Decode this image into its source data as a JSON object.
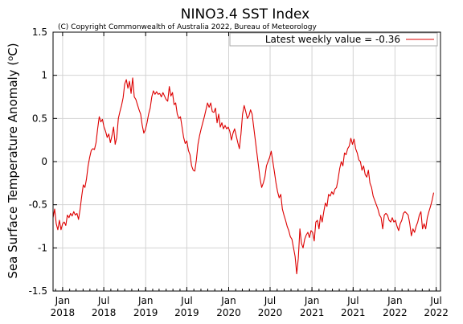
{
  "chart_data": {
    "type": "line",
    "title": "NINO3.4 SST Index",
    "subtitle": "(C) Copyright Commonwealth of Australia 2022, Bureau of Meteorology",
    "ylabel": "Sea Surface Temperature Anomaly (°C)",
    "xlabel": "",
    "ylim": [
      -1.5,
      1.5
    ],
    "xlim": [
      "2017-11-20",
      "2022-07-20"
    ],
    "yticks": [
      -1.5,
      -1,
      -0.5,
      0,
      0.5,
      1,
      1.5
    ],
    "ytick_labels": [
      "-1.5",
      "-1",
      "-0.5",
      "0",
      "0.5",
      "1",
      "1.5"
    ],
    "xticks": [
      {
        "date": "2018-01-01",
        "month": "Jan",
        "year": "2018"
      },
      {
        "date": "2018-07-01",
        "month": "Jul",
        "year": "2018"
      },
      {
        "date": "2019-01-01",
        "month": "Jan",
        "year": "2019"
      },
      {
        "date": "2019-07-01",
        "month": "Jul",
        "year": "2019"
      },
      {
        "date": "2020-01-01",
        "month": "Jan",
        "year": "2020"
      },
      {
        "date": "2020-07-01",
        "month": "Jul",
        "year": "2020"
      },
      {
        "date": "2021-01-01",
        "month": "Jan",
        "year": "2021"
      },
      {
        "date": "2021-07-01",
        "month": "Jul",
        "year": "2021"
      },
      {
        "date": "2022-01-01",
        "month": "Jan",
        "year": "2022"
      },
      {
        "date": "2022-07-01",
        "month": "Jul",
        "year": "2022"
      }
    ],
    "grid": true,
    "legend_position": "top-right",
    "series": [
      {
        "name": "Latest weekly value = -0.36",
        "color": "#dd0000",
        "points": [
          [
            "2017-11-20",
            -0.65
          ],
          [
            "2017-11-27",
            -0.55
          ],
          [
            "2017-12-04",
            -0.72
          ],
          [
            "2017-12-11",
            -0.79
          ],
          [
            "2017-12-18",
            -0.68
          ],
          [
            "2017-12-25",
            -0.79
          ],
          [
            "2018-01-01",
            -0.72
          ],
          [
            "2018-01-08",
            -0.7
          ],
          [
            "2018-01-15",
            -0.74
          ],
          [
            "2018-01-22",
            -0.62
          ],
          [
            "2018-01-29",
            -0.65
          ],
          [
            "2018-02-05",
            -0.6
          ],
          [
            "2018-02-12",
            -0.63
          ],
          [
            "2018-02-19",
            -0.58
          ],
          [
            "2018-02-26",
            -0.62
          ],
          [
            "2018-03-05",
            -0.6
          ],
          [
            "2018-03-12",
            -0.67
          ],
          [
            "2018-03-19",
            -0.55
          ],
          [
            "2018-03-26",
            -0.4
          ],
          [
            "2018-04-02",
            -0.27
          ],
          [
            "2018-04-09",
            -0.3
          ],
          [
            "2018-04-16",
            -0.2
          ],
          [
            "2018-04-23",
            -0.05
          ],
          [
            "2018-04-30",
            0.05
          ],
          [
            "2018-05-07",
            0.13
          ],
          [
            "2018-05-14",
            0.15
          ],
          [
            "2018-05-21",
            0.14
          ],
          [
            "2018-05-28",
            0.22
          ],
          [
            "2018-06-04",
            0.38
          ],
          [
            "2018-06-11",
            0.52
          ],
          [
            "2018-06-18",
            0.46
          ],
          [
            "2018-06-25",
            0.49
          ],
          [
            "2018-07-02",
            0.4
          ],
          [
            "2018-07-09",
            0.35
          ],
          [
            "2018-07-16",
            0.28
          ],
          [
            "2018-07-23",
            0.32
          ],
          [
            "2018-07-30",
            0.22
          ],
          [
            "2018-08-06",
            0.3
          ],
          [
            "2018-08-13",
            0.4
          ],
          [
            "2018-08-20",
            0.2
          ],
          [
            "2018-08-27",
            0.28
          ],
          [
            "2018-09-03",
            0.5
          ],
          [
            "2018-09-10",
            0.58
          ],
          [
            "2018-09-17",
            0.65
          ],
          [
            "2018-09-24",
            0.74
          ],
          [
            "2018-10-01",
            0.9
          ],
          [
            "2018-10-08",
            0.95
          ],
          [
            "2018-10-15",
            0.85
          ],
          [
            "2018-10-22",
            0.93
          ],
          [
            "2018-10-29",
            0.79
          ],
          [
            "2018-11-05",
            0.97
          ],
          [
            "2018-11-12",
            0.75
          ],
          [
            "2018-11-19",
            0.72
          ],
          [
            "2018-11-26",
            0.66
          ],
          [
            "2018-12-03",
            0.6
          ],
          [
            "2018-12-10",
            0.55
          ],
          [
            "2018-12-17",
            0.42
          ],
          [
            "2018-12-24",
            0.33
          ],
          [
            "2018-12-31",
            0.37
          ],
          [
            "2019-01-07",
            0.45
          ],
          [
            "2019-01-14",
            0.55
          ],
          [
            "2019-01-21",
            0.62
          ],
          [
            "2019-01-28",
            0.75
          ],
          [
            "2019-02-04",
            0.82
          ],
          [
            "2019-02-11",
            0.78
          ],
          [
            "2019-02-18",
            0.81
          ],
          [
            "2019-02-25",
            0.78
          ],
          [
            "2019-03-04",
            0.79
          ],
          [
            "2019-03-11",
            0.75
          ],
          [
            "2019-03-18",
            0.8
          ],
          [
            "2019-03-25",
            0.76
          ],
          [
            "2019-04-01",
            0.72
          ],
          [
            "2019-04-08",
            0.7
          ],
          [
            "2019-04-15",
            0.87
          ],
          [
            "2019-04-22",
            0.76
          ],
          [
            "2019-04-29",
            0.8
          ],
          [
            "2019-05-06",
            0.66
          ],
          [
            "2019-05-13",
            0.68
          ],
          [
            "2019-05-20",
            0.55
          ],
          [
            "2019-05-27",
            0.5
          ],
          [
            "2019-06-03",
            0.52
          ],
          [
            "2019-06-10",
            0.4
          ],
          [
            "2019-06-17",
            0.28
          ],
          [
            "2019-06-24",
            0.21
          ],
          [
            "2019-07-01",
            0.24
          ],
          [
            "2019-07-08",
            0.13
          ],
          [
            "2019-07-15",
            0.08
          ],
          [
            "2019-07-22",
            -0.05
          ],
          [
            "2019-07-29",
            -0.1
          ],
          [
            "2019-08-05",
            -0.11
          ],
          [
            "2019-08-12",
            0.02
          ],
          [
            "2019-08-19",
            0.2
          ],
          [
            "2019-08-26",
            0.3
          ],
          [
            "2019-09-02",
            0.38
          ],
          [
            "2019-09-09",
            0.45
          ],
          [
            "2019-09-16",
            0.52
          ],
          [
            "2019-09-23",
            0.6
          ],
          [
            "2019-09-30",
            0.68
          ],
          [
            "2019-10-07",
            0.63
          ],
          [
            "2019-10-14",
            0.68
          ],
          [
            "2019-10-21",
            0.58
          ],
          [
            "2019-10-28",
            0.57
          ],
          [
            "2019-11-04",
            0.62
          ],
          [
            "2019-11-11",
            0.45
          ],
          [
            "2019-11-18",
            0.55
          ],
          [
            "2019-11-25",
            0.4
          ],
          [
            "2019-12-02",
            0.45
          ],
          [
            "2019-12-09",
            0.38
          ],
          [
            "2019-12-16",
            0.42
          ],
          [
            "2019-12-23",
            0.38
          ],
          [
            "2019-12-30",
            0.4
          ],
          [
            "2020-01-06",
            0.35
          ],
          [
            "2020-01-13",
            0.25
          ],
          [
            "2020-01-20",
            0.33
          ],
          [
            "2020-01-27",
            0.38
          ],
          [
            "2020-02-03",
            0.3
          ],
          [
            "2020-02-10",
            0.22
          ],
          [
            "2020-02-17",
            0.15
          ],
          [
            "2020-02-24",
            0.32
          ],
          [
            "2020-03-02",
            0.55
          ],
          [
            "2020-03-09",
            0.65
          ],
          [
            "2020-03-16",
            0.58
          ],
          [
            "2020-03-23",
            0.5
          ],
          [
            "2020-03-30",
            0.53
          ],
          [
            "2020-04-06",
            0.6
          ],
          [
            "2020-04-13",
            0.55
          ],
          [
            "2020-04-20",
            0.4
          ],
          [
            "2020-04-27",
            0.25
          ],
          [
            "2020-05-04",
            0.1
          ],
          [
            "2020-05-11",
            -0.05
          ],
          [
            "2020-05-18",
            -0.2
          ],
          [
            "2020-05-25",
            -0.3
          ],
          [
            "2020-06-01",
            -0.25
          ],
          [
            "2020-06-08",
            -0.18
          ],
          [
            "2020-06-15",
            -0.05
          ],
          [
            "2020-06-22",
            0.0
          ],
          [
            "2020-06-29",
            0.05
          ],
          [
            "2020-07-06",
            0.12
          ],
          [
            "2020-07-13",
            0.0
          ],
          [
            "2020-07-20",
            -0.12
          ],
          [
            "2020-07-27",
            -0.25
          ],
          [
            "2020-08-03",
            -0.35
          ],
          [
            "2020-08-10",
            -0.42
          ],
          [
            "2020-08-17",
            -0.38
          ],
          [
            "2020-08-24",
            -0.55
          ],
          [
            "2020-08-31",
            -0.62
          ],
          [
            "2020-09-07",
            -0.68
          ],
          [
            "2020-09-14",
            -0.75
          ],
          [
            "2020-09-21",
            -0.8
          ],
          [
            "2020-09-28",
            -0.87
          ],
          [
            "2020-10-05",
            -0.9
          ],
          [
            "2020-10-12",
            -1.0
          ],
          [
            "2020-10-19",
            -1.1
          ],
          [
            "2020-10-26",
            -1.3
          ],
          [
            "2020-11-02",
            -1.12
          ],
          [
            "2020-11-09",
            -0.78
          ],
          [
            "2020-11-16",
            -0.95
          ],
          [
            "2020-11-23",
            -1.0
          ],
          [
            "2020-11-30",
            -0.9
          ],
          [
            "2020-12-07",
            -0.85
          ],
          [
            "2020-12-14",
            -0.82
          ],
          [
            "2020-12-21",
            -0.88
          ],
          [
            "2020-12-28",
            -0.8
          ],
          [
            "2021-01-04",
            -0.82
          ],
          [
            "2021-01-11",
            -0.92
          ],
          [
            "2021-01-18",
            -0.7
          ],
          [
            "2021-01-25",
            -0.68
          ],
          [
            "2021-02-01",
            -0.78
          ],
          [
            "2021-02-08",
            -0.62
          ],
          [
            "2021-02-15",
            -0.7
          ],
          [
            "2021-02-22",
            -0.58
          ],
          [
            "2021-03-01",
            -0.48
          ],
          [
            "2021-03-08",
            -0.52
          ],
          [
            "2021-03-15",
            -0.38
          ],
          [
            "2021-03-22",
            -0.4
          ],
          [
            "2021-03-29",
            -0.35
          ],
          [
            "2021-04-05",
            -0.38
          ],
          [
            "2021-04-12",
            -0.32
          ],
          [
            "2021-04-19",
            -0.3
          ],
          [
            "2021-04-26",
            -0.2
          ],
          [
            "2021-05-03",
            -0.08
          ],
          [
            "2021-05-10",
            0.0
          ],
          [
            "2021-05-17",
            -0.05
          ],
          [
            "2021-05-24",
            0.1
          ],
          [
            "2021-05-31",
            0.08
          ],
          [
            "2021-06-07",
            0.15
          ],
          [
            "2021-06-14",
            0.18
          ],
          [
            "2021-06-21",
            0.27
          ],
          [
            "2021-06-28",
            0.2
          ],
          [
            "2021-07-05",
            0.26
          ],
          [
            "2021-07-12",
            0.15
          ],
          [
            "2021-07-19",
            0.1
          ],
          [
            "2021-07-26",
            0.02
          ],
          [
            "2021-08-02",
            0.0
          ],
          [
            "2021-08-09",
            -0.1
          ],
          [
            "2021-08-16",
            -0.05
          ],
          [
            "2021-08-23",
            -0.15
          ],
          [
            "2021-08-30",
            -0.18
          ],
          [
            "2021-09-06",
            -0.1
          ],
          [
            "2021-09-13",
            -0.25
          ],
          [
            "2021-09-20",
            -0.3
          ],
          [
            "2021-09-27",
            -0.4
          ],
          [
            "2021-10-04",
            -0.45
          ],
          [
            "2021-10-11",
            -0.5
          ],
          [
            "2021-10-18",
            -0.55
          ],
          [
            "2021-10-25",
            -0.62
          ],
          [
            "2021-11-01",
            -0.65
          ],
          [
            "2021-11-08",
            -0.78
          ],
          [
            "2021-11-15",
            -0.62
          ],
          [
            "2021-11-22",
            -0.6
          ],
          [
            "2021-11-29",
            -0.62
          ],
          [
            "2021-12-06",
            -0.68
          ],
          [
            "2021-12-13",
            -0.7
          ],
          [
            "2021-12-20",
            -0.65
          ],
          [
            "2021-12-27",
            -0.7
          ],
          [
            "2022-01-03",
            -0.68
          ],
          [
            "2022-01-10",
            -0.75
          ],
          [
            "2022-01-17",
            -0.8
          ],
          [
            "2022-01-24",
            -0.72
          ],
          [
            "2022-01-31",
            -0.68
          ],
          [
            "2022-02-07",
            -0.6
          ],
          [
            "2022-02-14",
            -0.58
          ],
          [
            "2022-02-21",
            -0.6
          ],
          [
            "2022-02-28",
            -0.62
          ],
          [
            "2022-03-07",
            -0.72
          ],
          [
            "2022-03-14",
            -0.86
          ],
          [
            "2022-03-21",
            -0.78
          ],
          [
            "2022-03-28",
            -0.82
          ],
          [
            "2022-04-04",
            -0.75
          ],
          [
            "2022-04-11",
            -0.7
          ],
          [
            "2022-04-18",
            -0.62
          ],
          [
            "2022-04-25",
            -0.58
          ],
          [
            "2022-05-02",
            -0.78
          ],
          [
            "2022-05-09",
            -0.72
          ],
          [
            "2022-05-16",
            -0.78
          ],
          [
            "2022-05-23",
            -0.65
          ],
          [
            "2022-05-30",
            -0.58
          ],
          [
            "2022-06-06",
            -0.52
          ],
          [
            "2022-06-13",
            -0.45
          ],
          [
            "2022-06-20",
            -0.36
          ]
        ]
      }
    ]
  }
}
